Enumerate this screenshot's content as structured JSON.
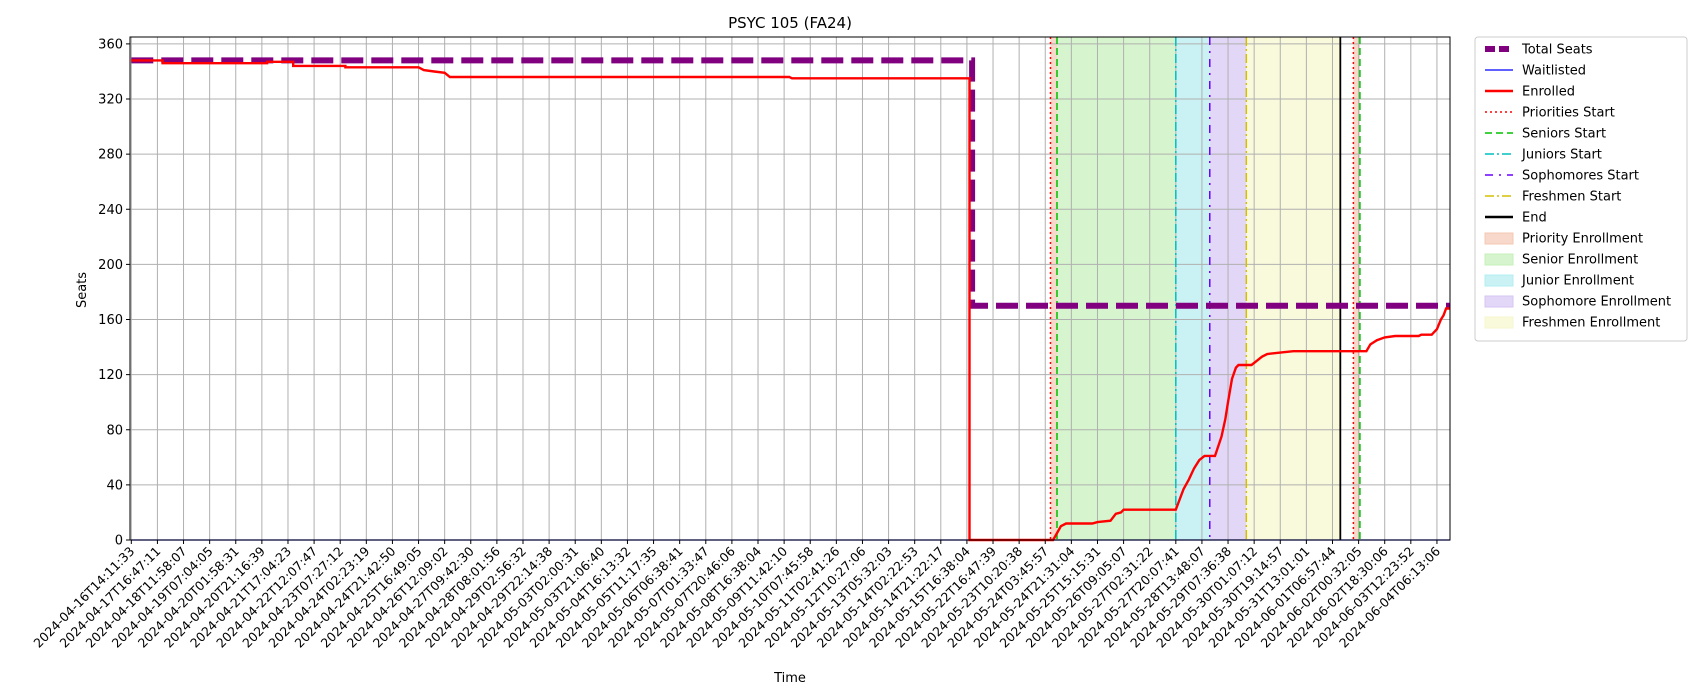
{
  "chart_data": {
    "type": "line",
    "title": "PSYC 105 (FA24)",
    "xlabel": "Time",
    "ylabel": "Seats",
    "ylim": [
      0,
      365
    ],
    "yticks": [
      0,
      40,
      80,
      120,
      160,
      200,
      240,
      280,
      320,
      360
    ],
    "grid": true,
    "legend_position": "outside-right",
    "x_tick_labels": [
      "2024-04-16T14:11:33",
      "2024-04-17T16:47:11",
      "2024-04-18T11:58:07",
      "2024-04-19T07:04:05",
      "2024-04-20T01:58:31",
      "2024-04-20T21:16:39",
      "2024-04-21T17:04:23",
      "2024-04-22T12:07:47",
      "2024-04-23T07:27:12",
      "2024-04-24T02:23:19",
      "2024-04-24T21:42:50",
      "2024-04-25T16:49:05",
      "2024-04-26T12:09:02",
      "2024-04-27T09:42:30",
      "2024-04-28T08:01:56",
      "2024-04-29T02:56:32",
      "2024-04-29T22:14:38",
      "2024-05-03T02:00:31",
      "2024-05-03T21:06:40",
      "2024-05-04T16:13:32",
      "2024-05-05T11:17:35",
      "2024-05-06T06:38:41",
      "2024-05-07T01:33:47",
      "2024-05-07T20:46:06",
      "2024-05-08T16:38:04",
      "2024-05-09T11:42:10",
      "2024-05-10T07:45:58",
      "2024-05-11T02:41:26",
      "2024-05-12T10:27:06",
      "2024-05-13T05:32:03",
      "2024-05-14T02:22:53",
      "2024-05-14T21:22:17",
      "2024-05-15T16:38:04",
      "2024-05-22T16:47:39",
      "2024-05-23T10:20:38",
      "2024-05-24T03:45:57",
      "2024-05-24T21:31:04",
      "2024-05-25T15:15:31",
      "2024-05-26T09:05:07",
      "2024-05-27T02:31:22",
      "2024-05-27T20:07:41",
      "2024-05-28T13:48:07",
      "2024-05-29T07:36:38",
      "2024-05-30T01:07:12",
      "2024-05-30T19:14:57",
      "2024-05-31T13:01:01",
      "2024-06-01T06:57:44",
      "2024-06-02T00:32:05",
      "2024-06-02T18:30:06",
      "2024-06-03T12:23:52",
      "2024-06-04T06:13:06"
    ],
    "series": [
      {
        "name": "Total Seats",
        "color": "#800080",
        "style": "dashed-thick",
        "points": [
          [
            0,
            348
          ],
          [
            32.2,
            348
          ],
          [
            32.2,
            170
          ],
          [
            50.5,
            170
          ]
        ]
      },
      {
        "name": "Waitlisted",
        "color": "#0000ff",
        "style": "solid-thin",
        "points": [
          [
            0,
            0
          ],
          [
            50.5,
            0
          ]
        ]
      },
      {
        "name": "Enrolled",
        "color": "#ff0000",
        "style": "solid",
        "points": [
          [
            0,
            348
          ],
          [
            1.2,
            348
          ],
          [
            1.2,
            346
          ],
          [
            5.2,
            346
          ],
          [
            5.2,
            347
          ],
          [
            6.2,
            347
          ],
          [
            6.2,
            344
          ],
          [
            8.2,
            344
          ],
          [
            8.2,
            343
          ],
          [
            11,
            343
          ],
          [
            11.2,
            341
          ],
          [
            11.6,
            340
          ],
          [
            12.0,
            339
          ],
          [
            12.2,
            336
          ],
          [
            25.2,
            336
          ],
          [
            25.3,
            335
          ],
          [
            32.1,
            335
          ],
          [
            32.1,
            0
          ],
          [
            35.3,
            0
          ],
          [
            35.45,
            5
          ],
          [
            35.6,
            10
          ],
          [
            35.8,
            12
          ],
          [
            36.8,
            12
          ],
          [
            37.0,
            13
          ],
          [
            37.5,
            14
          ],
          [
            37.7,
            19
          ],
          [
            37.9,
            20
          ],
          [
            38.0,
            22
          ],
          [
            40.0,
            22
          ],
          [
            40.3,
            37
          ],
          [
            40.5,
            44
          ],
          [
            40.7,
            52
          ],
          [
            40.9,
            58
          ],
          [
            41.1,
            61
          ],
          [
            41.5,
            61
          ],
          [
            41.75,
            75
          ],
          [
            41.9,
            88
          ],
          [
            42.0,
            100
          ],
          [
            42.15,
            117
          ],
          [
            42.3,
            125
          ],
          [
            42.4,
            127
          ],
          [
            42.9,
            127
          ],
          [
            43.1,
            130
          ],
          [
            43.3,
            133
          ],
          [
            43.5,
            135
          ],
          [
            44.0,
            136
          ],
          [
            44.5,
            137
          ],
          [
            46.0,
            137
          ],
          [
            47.3,
            137
          ],
          [
            47.45,
            142
          ],
          [
            47.7,
            145
          ],
          [
            48.0,
            147
          ],
          [
            48.4,
            148
          ],
          [
            49.3,
            148
          ],
          [
            49.4,
            149
          ],
          [
            49.8,
            149
          ],
          [
            50.0,
            153
          ],
          [
            50.15,
            160
          ],
          [
            50.25,
            163
          ],
          [
            50.35,
            168
          ],
          [
            50.5,
            168
          ]
        ]
      }
    ],
    "vertical_lines": [
      {
        "name": "Priorities Start",
        "x": 35.2,
        "color": "#ff0000",
        "style": "dotted"
      },
      {
        "name": "Seniors Start",
        "x": 35.45,
        "color": "#00c000",
        "style": "dashed"
      },
      {
        "name": "Juniors Start",
        "x": 40.0,
        "color": "#00bfbf",
        "style": "dashdot"
      },
      {
        "name": "Sophomores Start",
        "x": 41.3,
        "color": "#6a00ff",
        "style": "loosedashdot"
      },
      {
        "name": "Freshmen Start",
        "x": 42.7,
        "color": "#d4c000",
        "style": "dashdot"
      },
      {
        "name": "End",
        "x": 46.3,
        "color": "#000000",
        "style": "solid"
      },
      {
        "name": "Priorities Start",
        "x": 46.8,
        "color": "#ff0000",
        "style": "dotted"
      },
      {
        "name": "Seniors Start",
        "x": 47.05,
        "color": "#00c000",
        "style": "dashed"
      }
    ],
    "spans": [
      {
        "name": "Priority Enrollment",
        "x0": 35.2,
        "x1": 35.45,
        "color": "#f4c7b3"
      },
      {
        "name": "Senior Enrollment",
        "x0": 35.45,
        "x1": 40.0,
        "color": "#c5f0b8"
      },
      {
        "name": "Junior Enrollment",
        "x0": 40.0,
        "x1": 41.3,
        "color": "#b3ecf0"
      },
      {
        "name": "Sophomore Enrollment",
        "x0": 41.3,
        "x1": 42.7,
        "color": "#d6c6f2"
      },
      {
        "name": "Freshmen Enrollment",
        "x0": 42.7,
        "x1": 46.3,
        "color": "#f6f6cc"
      },
      {
        "name": "Priority Enrollment",
        "x0": 46.8,
        "x1": 47.05,
        "color": "#f4c7b3"
      }
    ],
    "legend": [
      {
        "label": "Total Seats",
        "kind": "line",
        "color": "#800080",
        "style": "dashed-thick"
      },
      {
        "label": "Waitlisted",
        "kind": "line",
        "color": "#0000ff",
        "style": "solid-thin"
      },
      {
        "label": "Enrolled",
        "kind": "line",
        "color": "#ff0000",
        "style": "solid"
      },
      {
        "label": "Priorities Start",
        "kind": "line",
        "color": "#ff0000",
        "style": "dotted"
      },
      {
        "label": "Seniors Start",
        "kind": "line",
        "color": "#00c000",
        "style": "dashed"
      },
      {
        "label": "Juniors Start",
        "kind": "line",
        "color": "#00bfbf",
        "style": "dashdot"
      },
      {
        "label": "Sophomores Start",
        "kind": "line",
        "color": "#6a00ff",
        "style": "loosedashdot"
      },
      {
        "label": "Freshmen Start",
        "kind": "line",
        "color": "#d4c000",
        "style": "dashdot"
      },
      {
        "label": "End",
        "kind": "line",
        "color": "#000000",
        "style": "solid"
      },
      {
        "label": "Priority Enrollment",
        "kind": "patch",
        "color": "#f4c7b3"
      },
      {
        "label": "Senior Enrollment",
        "kind": "patch",
        "color": "#c5f0b8"
      },
      {
        "label": "Junior Enrollment",
        "kind": "patch",
        "color": "#b3ecf0"
      },
      {
        "label": "Sophomore Enrollment",
        "kind": "patch",
        "color": "#d6c6f2"
      },
      {
        "label": "Freshmen Enrollment",
        "kind": "patch",
        "color": "#f6f6cc"
      }
    ]
  }
}
